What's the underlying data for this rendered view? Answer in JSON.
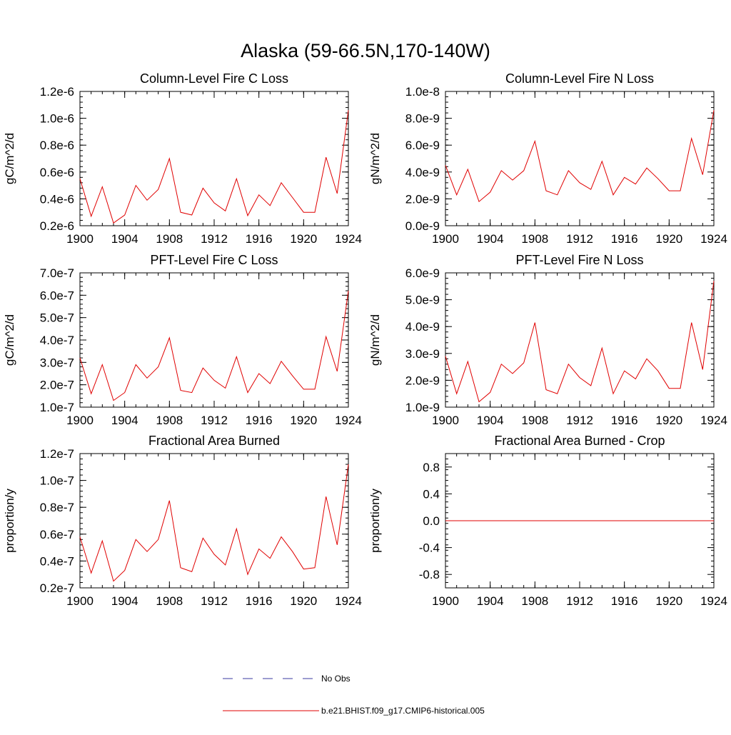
{
  "page_title": "Alaska (59-66.5N,170-140W)",
  "legend": {
    "entries": [
      {
        "label": "No Obs",
        "style": "dashed",
        "color": "#3a3aa0"
      },
      {
        "label": "b.e21.BHIST.f09_g17.CMIP6-historical.005",
        "style": "solid",
        "color": "#e00000"
      }
    ]
  },
  "colors": {
    "series": "#e00000",
    "axis": "#000000",
    "obs": "#3a3aa0"
  },
  "chart_data": [
    {
      "type": "line",
      "title": "Column-Level Fire C Loss",
      "xlabel": "",
      "ylabel": "gC/m^2/d",
      "xlim": [
        1900,
        1924
      ],
      "ylim": [
        2e-07,
        1.2e-06
      ],
      "xticks": [
        1900,
        1904,
        1908,
        1912,
        1916,
        1920,
        1924
      ],
      "xtick_labels": [
        "1900",
        "1904",
        "1908",
        "1912",
        "1916",
        "1920",
        "1924"
      ],
      "yticks": [
        2e-07,
        4e-07,
        6e-07,
        8e-07,
        1e-06,
        1.2e-06
      ],
      "ytick_labels": [
        "0.2e-6",
        "0.4e-6",
        "0.6e-6",
        "0.8e-6",
        "1.0e-6",
        "1.2e-6"
      ],
      "x": [
        1900,
        1901,
        1902,
        1903,
        1904,
        1905,
        1906,
        1907,
        1908,
        1909,
        1910,
        1911,
        1912,
        1913,
        1914,
        1915,
        1916,
        1917,
        1918,
        1919,
        1920,
        1921,
        1922,
        1923,
        1924
      ],
      "series": [
        {
          "values": [
            5.5e-07,
            2.7e-07,
            4.9e-07,
            2.2e-07,
            2.8e-07,
            5e-07,
            3.9e-07,
            4.7e-07,
            7e-07,
            3e-07,
            2.8e-07,
            4.8e-07,
            3.7e-07,
            3.1e-07,
            5.5e-07,
            2.75e-07,
            4.3e-07,
            3.5e-07,
            5.2e-07,
            4.1e-07,
            3e-07,
            3e-07,
            7.1e-07,
            4.4e-07,
            1.06e-06
          ]
        }
      ]
    },
    {
      "type": "line",
      "title": "Column-Level Fire N Loss",
      "xlabel": "",
      "ylabel": "gN/m^2/d",
      "xlim": [
        1900,
        1924
      ],
      "ylim": [
        0,
        1e-08
      ],
      "xticks": [
        1900,
        1904,
        1908,
        1912,
        1916,
        1920,
        1924
      ],
      "xtick_labels": [
        "1900",
        "1904",
        "1908",
        "1912",
        "1916",
        "1920",
        "1924"
      ],
      "yticks": [
        0,
        2e-09,
        4e-09,
        6e-09,
        8e-09,
        1e-08
      ],
      "ytick_labels": [
        "0.0e-9",
        "2.0e-9",
        "4.0e-9",
        "6.0e-9",
        "8.0e-9",
        "1.0e-8"
      ],
      "x": [
        1900,
        1901,
        1902,
        1903,
        1904,
        1905,
        1906,
        1907,
        1908,
        1909,
        1910,
        1911,
        1912,
        1913,
        1914,
        1915,
        1916,
        1917,
        1918,
        1919,
        1920,
        1921,
        1922,
        1923,
        1924
      ],
      "series": [
        {
          "values": [
            4.5e-09,
            2.3e-09,
            4.2e-09,
            1.8e-09,
            2.5e-09,
            4.1e-09,
            3.4e-09,
            4.1e-09,
            6.3e-09,
            2.6e-09,
            2.3e-09,
            4.1e-09,
            3.2e-09,
            2.7e-09,
            4.8e-09,
            2.3e-09,
            3.6e-09,
            3.1e-09,
            4.3e-09,
            3.5e-09,
            2.6e-09,
            2.6e-09,
            6.5e-09,
            3.8e-09,
            8.6e-09
          ]
        }
      ]
    },
    {
      "type": "line",
      "title": "PFT-Level Fire C Loss",
      "xlabel": "",
      "ylabel": "gC/m^2/d",
      "xlim": [
        1900,
        1924
      ],
      "ylim": [
        1e-07,
        7e-07
      ],
      "xticks": [
        1900,
        1904,
        1908,
        1912,
        1916,
        1920,
        1924
      ],
      "xtick_labels": [
        "1900",
        "1904",
        "1908",
        "1912",
        "1916",
        "1920",
        "1924"
      ],
      "yticks": [
        1e-07,
        2e-07,
        3e-07,
        4e-07,
        5e-07,
        6e-07,
        7e-07
      ],
      "ytick_labels": [
        "1.0e-7",
        "2.0e-7",
        "3.0e-7",
        "4.0e-7",
        "5.0e-7",
        "6.0e-7",
        "7.0e-7"
      ],
      "x": [
        1900,
        1901,
        1902,
        1903,
        1904,
        1905,
        1906,
        1907,
        1908,
        1909,
        1910,
        1911,
        1912,
        1913,
        1914,
        1915,
        1916,
        1917,
        1918,
        1919,
        1920,
        1921,
        1922,
        1923,
        1924
      ],
      "series": [
        {
          "values": [
            3.2e-07,
            1.6e-07,
            2.9e-07,
            1.3e-07,
            1.65e-07,
            2.9e-07,
            2.3e-07,
            2.8e-07,
            4.1e-07,
            1.75e-07,
            1.65e-07,
            2.75e-07,
            2.2e-07,
            1.85e-07,
            3.25e-07,
            1.65e-07,
            2.5e-07,
            2.05e-07,
            3.05e-07,
            2.4e-07,
            1.8e-07,
            1.8e-07,
            4.15e-07,
            2.6e-07,
            6.2e-07
          ]
        }
      ]
    },
    {
      "type": "line",
      "title": "PFT-Level Fire N Loss",
      "xlabel": "",
      "ylabel": "gN/m^2/d",
      "xlim": [
        1900,
        1924
      ],
      "ylim": [
        1e-09,
        6e-09
      ],
      "xticks": [
        1900,
        1904,
        1908,
        1912,
        1916,
        1920,
        1924
      ],
      "xtick_labels": [
        "1900",
        "1904",
        "1908",
        "1912",
        "1916",
        "1920",
        "1924"
      ],
      "yticks": [
        1e-09,
        2e-09,
        3e-09,
        4e-09,
        5e-09,
        6e-09
      ],
      "ytick_labels": [
        "1.0e-9",
        "2.0e-9",
        "3.0e-9",
        "4.0e-9",
        "5.0e-9",
        "6.0e-9"
      ],
      "x": [
        1900,
        1901,
        1902,
        1903,
        1904,
        1905,
        1906,
        1907,
        1908,
        1909,
        1910,
        1911,
        1912,
        1913,
        1914,
        1915,
        1916,
        1917,
        1918,
        1919,
        1920,
        1921,
        1922,
        1923,
        1924
      ],
      "series": [
        {
          "values": [
            2.9e-09,
            1.5e-09,
            2.7e-09,
            1.2e-09,
            1.55e-09,
            2.6e-09,
            2.25e-09,
            2.65e-09,
            4.15e-09,
            1.65e-09,
            1.5e-09,
            2.6e-09,
            2.1e-09,
            1.8e-09,
            3.2e-09,
            1.5e-09,
            2.35e-09,
            2.05e-09,
            2.8e-09,
            2.35e-09,
            1.7e-09,
            1.7e-09,
            4.15e-09,
            2.4e-09,
            5.7e-09
          ]
        }
      ]
    },
    {
      "type": "line",
      "title": "Fractional Area Burned",
      "xlabel": "",
      "ylabel": "proportion/y",
      "xlim": [
        1900,
        1924
      ],
      "ylim": [
        2e-08,
        1.2e-07
      ],
      "xticks": [
        1900,
        1904,
        1908,
        1912,
        1916,
        1920,
        1924
      ],
      "xtick_labels": [
        "1900",
        "1904",
        "1908",
        "1912",
        "1916",
        "1920",
        "1924"
      ],
      "yticks": [
        2e-08,
        4e-08,
        6e-08,
        8e-08,
        1e-07,
        1.2e-07
      ],
      "ytick_labels": [
        "0.2e-7",
        "0.4e-7",
        "0.6e-7",
        "0.8e-7",
        "1.0e-7",
        "1.2e-7"
      ],
      "x": [
        1900,
        1901,
        1902,
        1903,
        1904,
        1905,
        1906,
        1907,
        1908,
        1909,
        1910,
        1911,
        1912,
        1913,
        1914,
        1915,
        1916,
        1917,
        1918,
        1919,
        1920,
        1921,
        1922,
        1923,
        1924
      ],
      "series": [
        {
          "values": [
            5.8e-08,
            3.1e-08,
            5.5e-08,
            2.5e-08,
            3.3e-08,
            5.6e-08,
            4.7e-08,
            5.6e-08,
            8.5e-08,
            3.5e-08,
            3.2e-08,
            5.7e-08,
            4.5e-08,
            3.7e-08,
            6.4e-08,
            3e-08,
            4.9e-08,
            4.2e-08,
            5.8e-08,
            4.7e-08,
            3.4e-08,
            3.5e-08,
            8.8e-08,
            5.2e-08,
            1.12e-07
          ]
        }
      ]
    },
    {
      "type": "line",
      "title": "Fractional Area Burned - Crop",
      "xlabel": "",
      "ylabel": "proportion/y",
      "xlim": [
        1900,
        1924
      ],
      "ylim": [
        -1,
        1
      ],
      "xticks": [
        1900,
        1904,
        1908,
        1912,
        1916,
        1920,
        1924
      ],
      "xtick_labels": [
        "1900",
        "1904",
        "1908",
        "1912",
        "1916",
        "1920",
        "1924"
      ],
      "yticks": [
        -0.8,
        -0.4,
        0,
        0.4,
        0.8
      ],
      "ytick_labels": [
        "-0.8",
        "-0.4",
        "0.0",
        "0.4",
        "0.8"
      ],
      "x": [
        1900,
        1924
      ],
      "series": [
        {
          "values": [
            0,
            0
          ]
        }
      ]
    }
  ]
}
